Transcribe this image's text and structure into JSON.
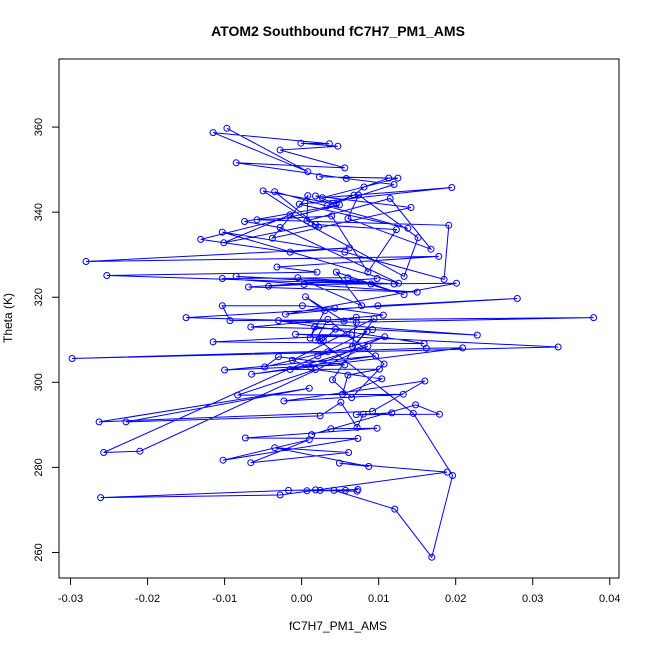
{
  "chart_data": {
    "type": "line",
    "title": "ATOM2 Southbound fC7H7_PM1_AMS",
    "xlabel": "fC7H7_PM1_AMS",
    "ylabel": "Theta (K)",
    "xlim": [
      -0.0315,
      0.0412
    ],
    "ylim": [
      254,
      376
    ],
    "x_ticks": [
      -0.03,
      -0.02,
      -0.01,
      0.0,
      0.01,
      0.02,
      0.03,
      0.04
    ],
    "x_tick_labels": [
      "-0.03",
      "-0.02",
      "-0.01",
      "0.00",
      "0.01",
      "0.02",
      "0.03",
      "0.04"
    ],
    "y_ticks": [
      260,
      280,
      300,
      320,
      340,
      360
    ],
    "y_tick_labels": [
      "260",
      "280",
      "300",
      "320",
      "340",
      "360"
    ],
    "grid": false,
    "series": [
      {
        "color": "#0000ff",
        "marker": "open-circle",
        "points": [
          [
            -0.0097,
            359.7
          ],
          [
            0.0008,
            349.5
          ],
          [
            -0.0115,
            358.7
          ],
          [
            0.0036,
            356.1
          ],
          [
            -0.0001,
            356.2
          ],
          [
            0.0047,
            355.5
          ],
          [
            -0.0028,
            354.6
          ],
          [
            0.0056,
            350.4
          ],
          [
            -0.0085,
            351.6
          ],
          [
            0.0058,
            347.9
          ],
          [
            0.012,
            346.5
          ],
          [
            0.0033,
            341.5
          ],
          [
            0.0068,
            344.0
          ],
          [
            0.0081,
            345.9
          ],
          [
            0.0113,
            348.0
          ],
          [
            0.0023,
            348.3
          ],
          [
            0.0125,
            348.0
          ],
          [
            0.0027,
            343.4
          ],
          [
            0.0195,
            345.8
          ],
          [
            -0.0003,
            341.9
          ],
          [
            0.0138,
            336.2
          ],
          [
            -0.0035,
            344.8
          ],
          [
            0.0022,
            336.5
          ],
          [
            -0.005,
            345.0
          ],
          [
            0.0045,
            341.9
          ],
          [
            0.0018,
            343.8
          ],
          [
            0.0142,
            341.1
          ],
          [
            -0.0038,
            333.9
          ],
          [
            0.0008,
            343.9
          ],
          [
            0.0007,
            338.0
          ],
          [
            0.0115,
            343.2
          ],
          [
            0.0168,
            331.3
          ],
          [
            0.006,
            338.5
          ],
          [
            0.0074,
            344.0
          ],
          [
            0.0151,
            334.0
          ],
          [
            0.0133,
            324.9
          ],
          [
            -0.0015,
            339.4
          ],
          [
            -0.0101,
            332.8
          ],
          [
            0.0018,
            337.1
          ],
          [
            0.0123,
            335.9
          ],
          [
            0.0086,
            325.9
          ],
          [
            0.0039,
            339.1
          ],
          [
            -0.0058,
            338.2
          ],
          [
            0.0191,
            336.9
          ],
          [
            0.0185,
            324.2
          ],
          [
            0.0056,
            330.6
          ],
          [
            -0.0103,
            335.3
          ],
          [
            0.0126,
            323.3
          ],
          [
            -0.0028,
            336.4
          ],
          [
            -0.0074,
            337.8
          ],
          [
            0.0049,
            341.7
          ],
          [
            -0.0131,
            333.6
          ],
          [
            -0.0015,
            330.6
          ],
          [
            0.0062,
            331.6
          ],
          [
            -0.028,
            328.4
          ],
          [
            0.0178,
            329.6
          ],
          [
            -0.0032,
            327.1
          ],
          [
            0.002,
            325.9
          ],
          [
            -0.0253,
            325.1
          ],
          [
            0.009,
            323.1
          ],
          [
            -0.0085,
            324.9
          ],
          [
            0.012,
            323.1
          ],
          [
            -0.0005,
            324.6
          ],
          [
            0.0078,
            318.0
          ],
          [
            0.0045,
            325.9
          ],
          [
            0.0133,
            320.6
          ],
          [
            0.006,
            324.6
          ],
          [
            -0.0103,
            324.4
          ],
          [
            0.015,
            321.2
          ],
          [
            -0.0069,
            322.4
          ],
          [
            0.0098,
            324.4
          ],
          [
            -0.0043,
            322.6
          ],
          [
            0.0003,
            323.0
          ],
          [
            0.0201,
            323.3
          ],
          [
            -0.0021,
            316.0
          ],
          [
            0.0099,
            318.0
          ],
          [
            0.028,
            319.7
          ],
          [
            -0.015,
            315.2
          ],
          [
            0.0071,
            314.1
          ],
          [
            0.0379,
            315.2
          ],
          [
            -0.0093,
            314.5
          ],
          [
            -0.0103,
            318.0
          ],
          [
            0.0001,
            318.0
          ],
          [
            0.0043,
            317.4
          ],
          [
            0.0106,
            315.8
          ],
          [
            -0.0066,
            313.0
          ],
          [
            0.0092,
            312.4
          ],
          [
            0.0228,
            311.1
          ],
          [
            -0.003,
            314.5
          ],
          [
            0.0159,
            309.1
          ],
          [
            -0.0115,
            309.5
          ],
          [
            0.0065,
            311.1
          ],
          [
            -0.0008,
            311.3
          ],
          [
            0.0333,
            308.3
          ],
          [
            -0.0298,
            305.6
          ],
          [
            0.0162,
            308.0
          ],
          [
            0.0209,
            308.1
          ],
          [
            -0.0065,
            301.9
          ],
          [
            0.0096,
            306.2
          ],
          [
            -0.01,
            302.9
          ],
          [
            0.0056,
            304.1
          ],
          [
            -0.003,
            306.0
          ],
          [
            -0.0048,
            303.6
          ],
          [
            0.0034,
            307.2
          ],
          [
            -0.0257,
            283.5
          ],
          [
            -0.021,
            283.8
          ],
          [
            0.0086,
            308.5
          ],
          [
            -0.0015,
            303.0
          ],
          [
            0.0101,
            303.1
          ],
          [
            0.006,
            301.7
          ],
          [
            0.0053,
            297.2
          ],
          [
            0.0104,
            300.8
          ],
          [
            0.0018,
            303.0
          ],
          [
            -0.0083,
            297.0
          ],
          [
            0.0132,
            297.2
          ],
          [
            -0.0023,
            295.6
          ],
          [
            0.016,
            300.3
          ],
          [
            0.0092,
            293.2
          ],
          [
            -0.0263,
            290.7
          ],
          [
            0.001,
            298.6
          ],
          [
            -0.0228,
            290.7
          ],
          [
            0.0024,
            292.1
          ],
          [
            0.0051,
            295.3
          ],
          [
            0.0072,
            289.4
          ],
          [
            0.008,
            292.5
          ],
          [
            0.0117,
            292.8
          ],
          [
            0.0071,
            292.4
          ],
          [
            0.0179,
            292.5
          ],
          [
            0.0148,
            294.7
          ],
          [
            0.0013,
            287.7
          ],
          [
            0.0038,
            289.1
          ],
          [
            0.0098,
            289.2
          ],
          [
            -0.0073,
            286.9
          ],
          [
            0.0073,
            286.8
          ],
          [
            -0.0102,
            281.7
          ],
          [
            0.001,
            286.5
          ],
          [
            -0.0066,
            281.1
          ],
          [
            0.0061,
            283.5
          ],
          [
            -0.0035,
            284.6
          ],
          [
            0.0087,
            280.2
          ],
          [
            0.0049,
            281.0
          ],
          [
            0.0189,
            278.9
          ],
          [
            -0.0028,
            273.5
          ],
          [
            -0.0261,
            272.9
          ],
          [
            -0.0017,
            274.6
          ],
          [
            0.0018,
            274.7
          ],
          [
            0.0007,
            274.5
          ],
          [
            0.0057,
            274.6
          ],
          [
            0.0073,
            274.8
          ],
          [
            0.0024,
            274.6
          ],
          [
            0.0072,
            274.4
          ],
          [
            0.0042,
            274.6
          ],
          [
            0.0121,
            270.2
          ],
          [
            0.0169,
            258.9
          ],
          [
            0.0196,
            278.1
          ],
          [
            0.0145,
            292.7
          ],
          [
            0.0024,
            309.7
          ],
          [
            0.0028,
            309.8
          ],
          [
            0.0044,
            312.5
          ],
          [
            0.0017,
            313.0
          ],
          [
            0.0011,
            310.4
          ],
          [
            0.003,
            316.8
          ],
          [
            0.0005,
            320.1
          ],
          [
            0.0055,
            314.4
          ],
          [
            0.0071,
            315.3
          ],
          [
            0.0066,
            308.4
          ],
          [
            0.0085,
            312.0
          ],
          [
            0.0021,
            306.2
          ],
          [
            0.0108,
            310.7
          ],
          [
            0.0012,
            303.5
          ],
          [
            -0.0012,
            305.2
          ],
          [
            0.0094,
            315.0
          ],
          [
            0.004,
            300.6
          ],
          [
            0.0065,
            296.4
          ],
          [
            0.0107,
            304.3
          ],
          [
            0.0034,
            314.8
          ],
          [
            0.0018,
            309.9
          ],
          [
            0.0026,
            310.3
          ]
        ]
      }
    ]
  }
}
